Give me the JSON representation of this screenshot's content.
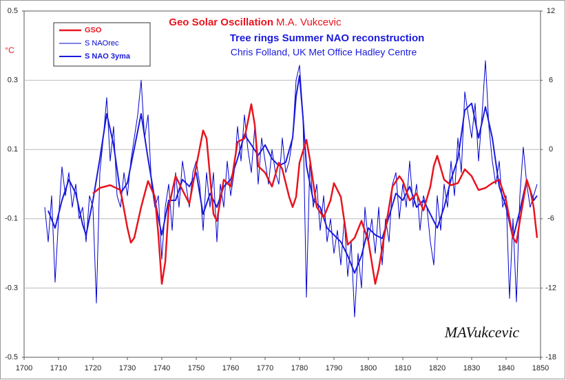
{
  "chart_data": {
    "type": "line",
    "title": "Geo Solar Oscillation",
    "title_note": "M.A. Vukcevic",
    "subtitle": "Tree rings Summer NAO reconstruction",
    "credit": "Chris Folland, UK Met Office Hadley Centre",
    "annotation": "MAVukcevic",
    "ylabel": "°C",
    "xlim": [
      1700,
      1850
    ],
    "xticks": [
      1700,
      1710,
      1720,
      1730,
      1740,
      1750,
      1760,
      1770,
      1780,
      1790,
      1800,
      1810,
      1820,
      1830,
      1840,
      1850
    ],
    "ylim": [
      -0.5,
      0.5
    ],
    "yticks": [
      -0.5,
      -0.3,
      -0.1,
      0.1,
      0.3,
      0.5
    ],
    "y2lim": [
      -18,
      12
    ],
    "y2ticks": [
      -18,
      -12,
      -6,
      0,
      6,
      12
    ],
    "grid": true,
    "legend": "upper left",
    "series": [
      {
        "name": "GSO",
        "color": "#e8141e",
        "width": 2.5,
        "x": [
          1720,
          1722,
          1725,
          1728,
          1730,
          1731,
          1732,
          1734,
          1736,
          1738,
          1739,
          1740,
          1741,
          1742,
          1744,
          1746,
          1748,
          1750,
          1752,
          1753,
          1755,
          1756,
          1758,
          1760,
          1762,
          1764,
          1765,
          1766,
          1767,
          1768,
          1770,
          1772,
          1774,
          1775,
          1777,
          1778,
          1779,
          1780,
          1782,
          1783,
          1785,
          1787,
          1789,
          1790,
          1792,
          1794,
          1796,
          1798,
          1800,
          1802,
          1803,
          1805,
          1807,
          1809,
          1810,
          1812,
          1814,
          1816,
          1818,
          1819,
          1820,
          1822,
          1824,
          1826,
          1828,
          1830,
          1832,
          1834,
          1836,
          1838,
          1840,
          1842,
          1843,
          1844,
          1846,
          1847,
          1848,
          1849
        ],
        "values": [
          -0.027,
          -0.011,
          -0.003,
          -0.017,
          -0.126,
          -0.169,
          -0.155,
          -0.066,
          0.009,
          -0.037,
          -0.146,
          -0.288,
          -0.225,
          -0.066,
          0.023,
          -0.017,
          -0.056,
          0.052,
          0.155,
          0.132,
          -0.086,
          -0.106,
          0.013,
          -0.007,
          0.122,
          0.132,
          0.181,
          0.231,
          0.171,
          0.052,
          0.033,
          -0.007,
          0.062,
          0.043,
          -0.037,
          -0.066,
          -0.037,
          0.062,
          0.128,
          0.072,
          -0.066,
          -0.096,
          -0.047,
          0.003,
          -0.037,
          -0.175,
          -0.155,
          -0.106,
          -0.165,
          -0.288,
          -0.245,
          -0.126,
          -0.007,
          0.023,
          0.009,
          -0.047,
          -0.027,
          -0.076,
          -0.007,
          0.052,
          0.082,
          0.013,
          -0.003,
          0.003,
          0.043,
          0.023,
          -0.017,
          -0.011,
          0.003,
          0.013,
          -0.047,
          -0.155,
          -0.169,
          -0.106,
          0.013,
          -0.017,
          -0.066,
          -0.155
        ]
      },
      {
        "name": "S NAOrec",
        "color": "#0000cc",
        "width": 1,
        "axis": "y2",
        "x": [
          1706,
          1707,
          1708,
          1709,
          1710,
          1711,
          1712,
          1713,
          1714,
          1715,
          1716,
          1717,
          1718,
          1719,
          1720,
          1721,
          1722,
          1723,
          1724,
          1725,
          1726,
          1727,
          1728,
          1729,
          1730,
          1731,
          1732,
          1733,
          1734,
          1735,
          1736,
          1737,
          1738,
          1739,
          1740,
          1741,
          1742,
          1743,
          1744,
          1745,
          1746,
          1747,
          1748,
          1749,
          1750,
          1751,
          1752,
          1753,
          1754,
          1755,
          1756,
          1757,
          1758,
          1759,
          1760,
          1761,
          1762,
          1763,
          1764,
          1765,
          1766,
          1767,
          1768,
          1769,
          1770,
          1771,
          1772,
          1773,
          1774,
          1775,
          1776,
          1777,
          1778,
          1779,
          1780,
          1781,
          1782,
          1783,
          1784,
          1785,
          1786,
          1787,
          1788,
          1789,
          1790,
          1791,
          1792,
          1793,
          1794,
          1795,
          1796,
          1797,
          1798,
          1799,
          1800,
          1801,
          1802,
          1803,
          1804,
          1805,
          1806,
          1807,
          1808,
          1809,
          1810,
          1811,
          1812,
          1813,
          1814,
          1815,
          1816,
          1817,
          1818,
          1819,
          1820,
          1821,
          1822,
          1823,
          1824,
          1825,
          1826,
          1827,
          1828,
          1829,
          1830,
          1831,
          1832,
          1833,
          1834,
          1835,
          1836,
          1837,
          1838,
          1839,
          1840,
          1841,
          1842,
          1843,
          1844,
          1845,
          1846,
          1847,
          1848,
          1849
        ],
        "values": [
          -5,
          -8,
          -4,
          -11.5,
          -6,
          -1.5,
          -4,
          -2,
          -5,
          -3,
          -6,
          -5,
          -8,
          -4,
          -5,
          -13.3,
          -2,
          1,
          4.5,
          -1,
          2,
          -4,
          -5,
          -2,
          -4,
          -1,
          1,
          3,
          6,
          1,
          3,
          -3,
          -5,
          -4,
          -9.5,
          -5,
          -3,
          -7,
          -2,
          -5,
          -1,
          -3,
          -5,
          -2,
          -1,
          -3,
          -7,
          -2,
          -5,
          -2,
          -8,
          -3,
          -5,
          -1,
          -4,
          -2,
          2,
          -1,
          3,
          0,
          -2,
          2,
          -3,
          1,
          -1,
          -3,
          0,
          -2,
          -3,
          1,
          -2,
          -1,
          1,
          6,
          7.3,
          3,
          -12.8,
          -1,
          -5,
          -3,
          -7,
          -4,
          -8,
          -6,
          -9,
          -7,
          -10,
          -6,
          -11,
          -8,
          -14.5,
          -9,
          -12,
          -5,
          -8,
          -6,
          -9,
          -5,
          -10,
          -6,
          -8,
          -3,
          -2,
          -6,
          -3,
          -5,
          -1,
          -5,
          -3,
          -7,
          -4,
          -5,
          -8,
          -10,
          -4,
          -7,
          -3,
          -5,
          -1,
          -4,
          1,
          -2,
          5,
          3,
          1,
          4,
          -1,
          3,
          7.7,
          2,
          -1,
          -3,
          -1,
          -5,
          -4,
          -12.9,
          -6,
          -13.2,
          -4,
          0.2,
          -3,
          -5,
          -4,
          -3
        ]
      },
      {
        "name": "S NAO 3yma",
        "color": "#1a1adc",
        "width": 2,
        "axis": "y2",
        "x": [
          1707,
          1709,
          1711,
          1713,
          1715,
          1717,
          1718,
          1720,
          1722,
          1724,
          1726,
          1728,
          1730,
          1732,
          1734,
          1736,
          1738,
          1740,
          1742,
          1744,
          1746,
          1748,
          1750,
          1752,
          1754,
          1756,
          1758,
          1760,
          1762,
          1764,
          1766,
          1768,
          1770,
          1772,
          1774,
          1776,
          1778,
          1779,
          1780,
          1781,
          1782,
          1784,
          1786,
          1788,
          1790,
          1792,
          1794,
          1796,
          1798,
          1800,
          1802,
          1804,
          1806,
          1808,
          1810,
          1812,
          1814,
          1816,
          1818,
          1820,
          1822,
          1824,
          1826,
          1828,
          1830,
          1832,
          1834,
          1836,
          1838,
          1840,
          1842,
          1844,
          1846,
          1848,
          1849
        ],
        "values": [
          -5.3,
          -6.8,
          -4.4,
          -2.6,
          -3.8,
          -6.5,
          -7.4,
          -4.4,
          -0.8,
          3.1,
          0.4,
          -3.8,
          -2.9,
          0.1,
          3.1,
          -0.8,
          -4.4,
          -7.4,
          -4.4,
          -4.4,
          -2.6,
          -3.2,
          -2.0,
          -5.6,
          -3.8,
          -5.0,
          -3.2,
          -2.6,
          -0.8,
          1.3,
          0.4,
          -0.5,
          0.4,
          -0.8,
          -1.4,
          -1.1,
          1.0,
          4.6,
          6.4,
          2.8,
          -1.4,
          -4.4,
          -5.0,
          -6.8,
          -7.4,
          -8.0,
          -9.2,
          -10.7,
          -9.2,
          -6.8,
          -7.4,
          -7.7,
          -5.8,
          -3.8,
          -4.4,
          -3.2,
          -5.0,
          -4.4,
          -5.6,
          -6.8,
          -5.0,
          -2.6,
          -0.8,
          3.4,
          4.0,
          1.0,
          3.7,
          1.0,
          -3.2,
          -5.0,
          -7.7,
          -5.3,
          -2.6,
          -4.4,
          -4.0
        ]
      }
    ]
  }
}
